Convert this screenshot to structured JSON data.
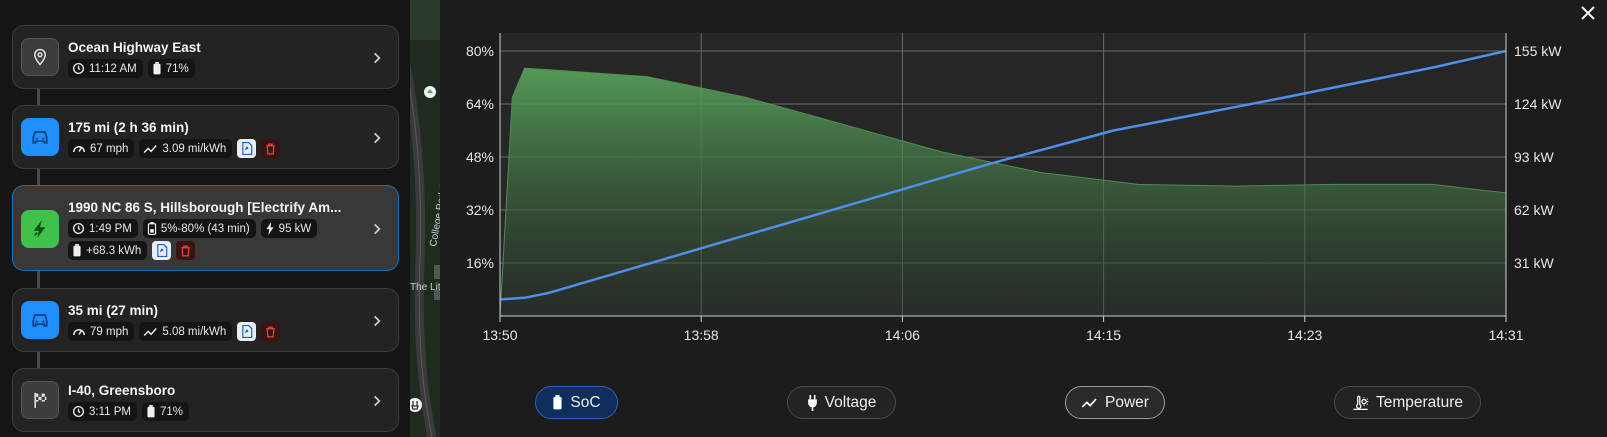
{
  "trip": {
    "stops": [
      {
        "type": "start",
        "icon": "location-pin-icon",
        "title": "Ocean Highway East",
        "time": "11:12 AM",
        "battery": "71%"
      },
      {
        "type": "drive",
        "icon": "car-icon",
        "title": "175 mi (2 h 36 min)",
        "speed": "67 mph",
        "efficiency": "3.09 mi/kWh"
      },
      {
        "type": "charge",
        "icon": "charging-bolt-icon",
        "title": "1990 NC 86 S, Hillsborough [Electrify Am...",
        "time": "1:49 PM",
        "soc_range": "5%-80% (43 min)",
        "power": "95 kW",
        "energy": "+68.3 kWh"
      },
      {
        "type": "drive",
        "icon": "car-icon",
        "title": "35 mi (27 min)",
        "speed": "79 mph",
        "efficiency": "5.08 mi/kWh"
      },
      {
        "type": "end",
        "icon": "checkered-flag-icon",
        "title": "I-40, Greensboro",
        "time": "3:11 PM",
        "battery": "71%"
      }
    ]
  },
  "map": {
    "road_label": "College Park Rd",
    "place_label": "The Lit"
  },
  "chart_data": {
    "type": "line",
    "x_ticks": [
      "13:50",
      "13:58",
      "14:06",
      "14:15",
      "14:23",
      "14:31"
    ],
    "y_left_ticks": [
      "80%",
      "64%",
      "48%",
      "32%",
      "16%"
    ],
    "y_right_ticks": [
      "155 kW",
      "124 kW",
      "93 kW",
      "62 kW",
      "31 kW"
    ],
    "x_range": [
      "13:50",
      "14:31"
    ],
    "ylim_left": [
      0,
      80
    ],
    "ylim_right": [
      0,
      155
    ],
    "grid": true,
    "series": [
      {
        "name": "SoC",
        "axis": "left",
        "color": "#4f8fe8",
        "x": [
          "13:50",
          "13:51",
          "13:52",
          "14:10",
          "14:15",
          "14:22",
          "14:28",
          "14:31"
        ],
        "values": [
          5,
          5.5,
          7,
          46,
          56,
          66,
          75,
          80
        ]
      },
      {
        "name": "Power",
        "axis": "right",
        "color": "#4e8c52",
        "x": [
          "13:50",
          "13:50.5",
          "13:51",
          "13:52",
          "13:56",
          "14:00",
          "14:04",
          "14:08",
          "14:12",
          "14:16",
          "14:20",
          "14:24",
          "14:28",
          "14:31"
        ],
        "values": [
          0,
          128,
          145,
          144,
          140,
          128,
          112,
          96,
          84,
          77,
          76,
          77,
          77,
          72
        ]
      }
    ]
  },
  "tabs": [
    {
      "label": "SoC",
      "icon": "battery-icon",
      "state": "active"
    },
    {
      "label": "Voltage",
      "icon": "plug-icon",
      "state": "inactive"
    },
    {
      "label": "Power",
      "icon": "trend-line-icon",
      "state": "active"
    },
    {
      "label": "Temperature",
      "icon": "thermometer-sun-icon",
      "state": "inactive"
    }
  ],
  "close_icon": "close-icon",
  "colors": {
    "accent_blue": "#1f8fff",
    "charge_green": "#3fc24a",
    "soc_line": "#4f8fe8",
    "power_fill": "#4e8c52",
    "delete_red": "#e04848"
  }
}
